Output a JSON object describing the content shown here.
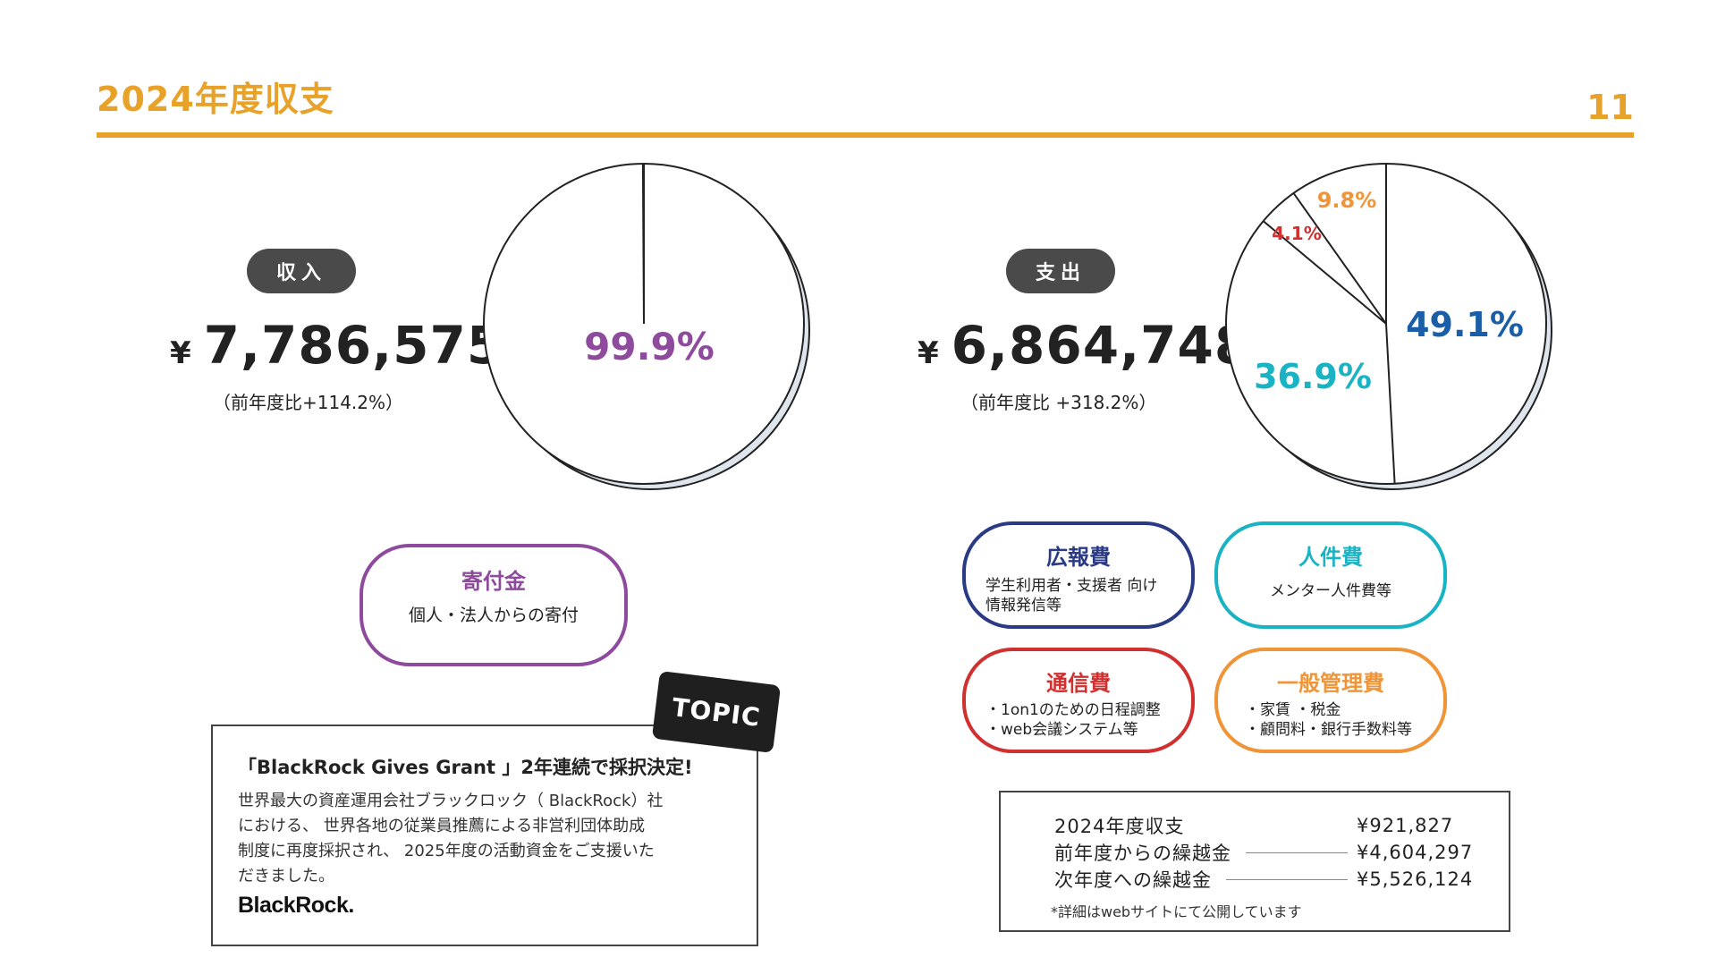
{
  "header": {
    "title": "2024年度収支",
    "page_number": "11"
  },
  "income": {
    "label": "収入",
    "currency": "¥",
    "amount": "7,786,575",
    "yoy": "（前年度比+114.2%）",
    "pie_label": "99.9%",
    "category": {
      "name": "寄付金",
      "desc": "個人・法人からの寄付",
      "color": "#8e4a9c"
    }
  },
  "expense": {
    "label": "支出",
    "currency": "¥",
    "amount": "6,864,748",
    "yoy": "（前年度比 +318.2%）",
    "categories": [
      {
        "name": "広報費",
        "desc_lines": [
          "学生利用者・支援者 向け",
          "情報発信等"
        ],
        "color": "#2a3a84"
      },
      {
        "name": "人件費",
        "desc_lines": [
          "メンター人件費等"
        ],
        "color": "#1ab3c4"
      },
      {
        "name": "通信費",
        "desc_lines": [
          "・1on1のための日程調整",
          "・web会議システム等"
        ],
        "color": "#d0302f"
      },
      {
        "name": "一般管理費",
        "desc_lines": [
          "・家賃 ・税金",
          "・顧問料・銀行手数料等"
        ],
        "color": "#ef9437"
      }
    ]
  },
  "chart_data": [
    {
      "type": "pie",
      "title": "",
      "slices": [
        {
          "label": "寄付金",
          "value": 99.9,
          "display": "99.9%",
          "color": "#8e4a9c"
        },
        {
          "label": "",
          "value": 0.1,
          "display": "",
          "color": "#8e4a9c"
        }
      ]
    },
    {
      "type": "pie",
      "title": "",
      "slices": [
        {
          "label": "広報費",
          "value": 49.1,
          "display": "49.1%",
          "color": "#1a5ea8"
        },
        {
          "label": "人件費",
          "value": 36.9,
          "display": "36.9%",
          "color": "#1ab3c4"
        },
        {
          "label": "通信費",
          "value": 4.1,
          "display": "4.1%",
          "color": "#d0302f"
        },
        {
          "label": "一般管理費",
          "value": 9.8,
          "display": "9.8%",
          "color": "#ef9437"
        }
      ]
    }
  ],
  "topic": {
    "tag": "TOPIC",
    "heading": "「BlackRock Gives Grant 」2年連続で採択決定!",
    "body_lines": [
      "世界最大の資産運用会社ブラックロック（ BlackRock）社",
      "における、 世界各地の従業員推薦による非営利団体助成",
      "制度に再度採択され、 2025年度の活動資金をご支援いた",
      "だきました。"
    ],
    "logo": "BlackRock."
  },
  "summary": {
    "rows": [
      {
        "label": "2024年度収支",
        "value": "¥921,827",
        "leader": false
      },
      {
        "label": "前年度からの繰越金",
        "value": "¥4,604,297",
        "leader": true
      },
      {
        "label": "次年度への繰越金",
        "value": "¥5,526,124",
        "leader": true
      }
    ],
    "note": "*詳細はwebサイトにて公開しています"
  },
  "colors": {
    "accent": "#e8a129",
    "pill": "#4a4a4a"
  }
}
